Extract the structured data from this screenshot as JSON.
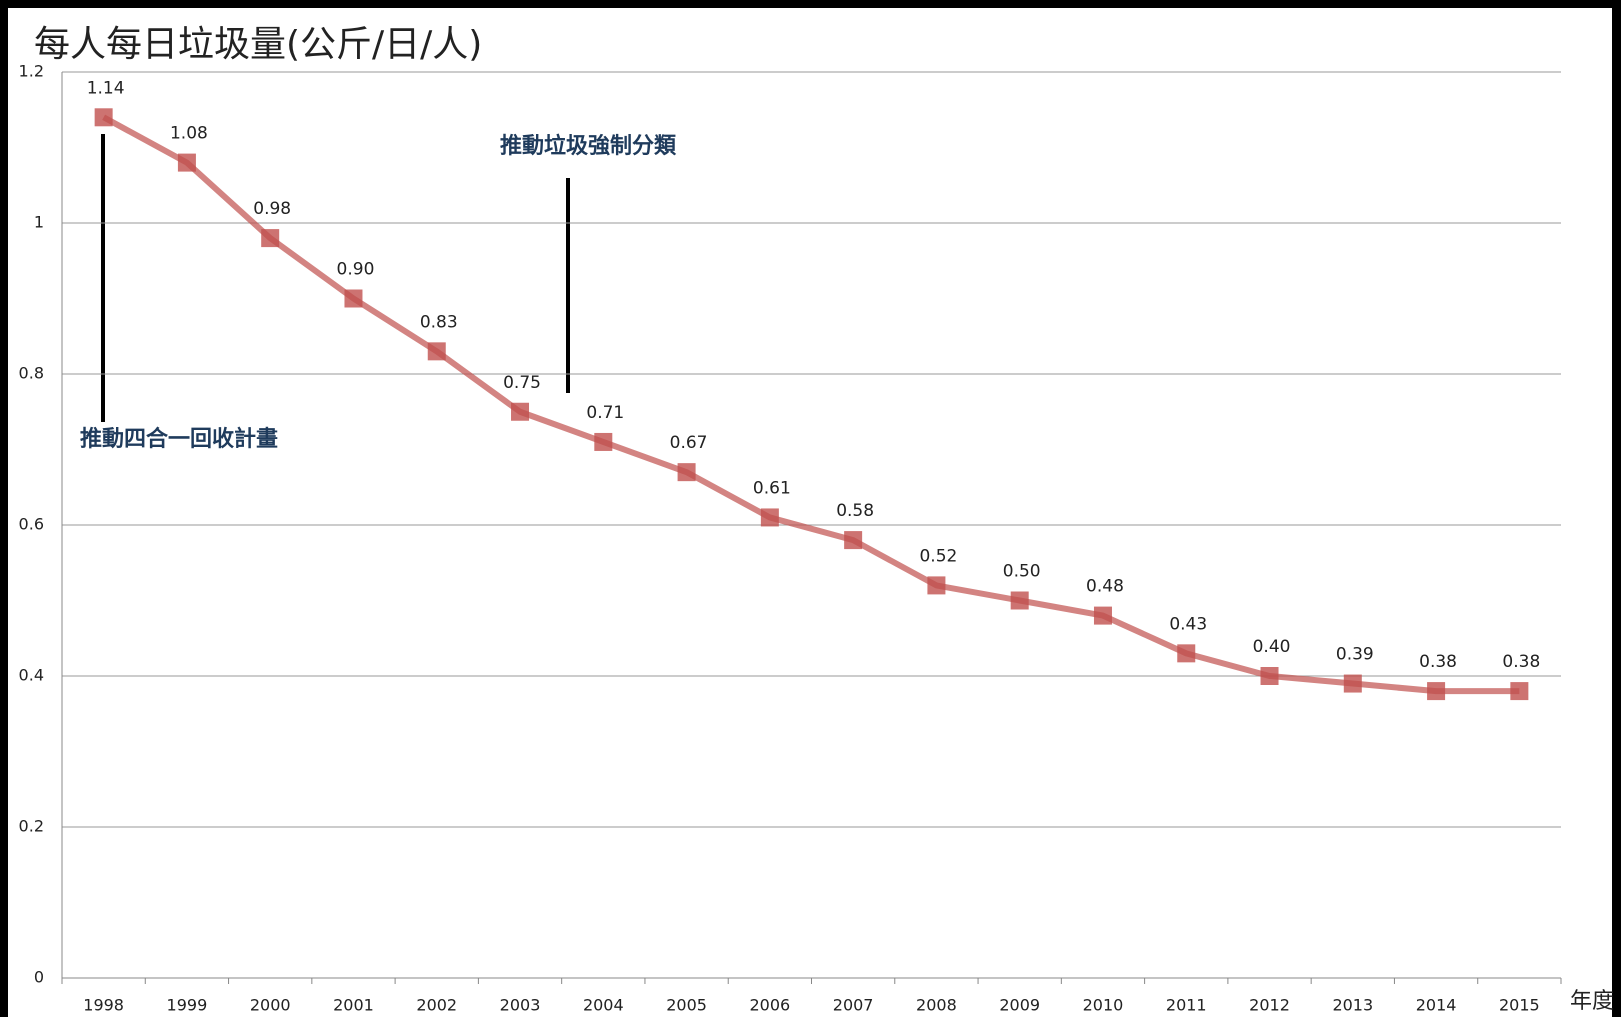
{
  "chart_data": {
    "type": "line",
    "title": "每人每日垃圾量(公斤/日/人)",
    "x_label": "年度",
    "categories": [
      "1998",
      "1999",
      "2000",
      "2001",
      "2002",
      "2003",
      "2004",
      "2005",
      "2006",
      "2007",
      "2008",
      "2009",
      "2010",
      "2011",
      "2012",
      "2013",
      "2014",
      "2015"
    ],
    "values": [
      1.14,
      1.08,
      0.98,
      0.9,
      0.83,
      0.75,
      0.71,
      0.67,
      0.61,
      0.58,
      0.52,
      0.5,
      0.48,
      0.43,
      0.4,
      0.39,
      0.38,
      0.38
    ],
    "value_labels": [
      "1.14",
      "1.08",
      "0.98",
      "0.90",
      "0.83",
      "0.75",
      "0.71",
      "0.67",
      "0.61",
      "0.58",
      "0.52",
      "0.50",
      "0.48",
      "0.43",
      "0.40",
      "0.39",
      "0.38",
      "0.38"
    ],
    "color": "#c0504d",
    "ylim": [
      0,
      1.2
    ],
    "yticks": [
      0,
      0.2,
      0.4,
      0.6,
      0.8,
      1,
      1.2
    ],
    "grid": true,
    "annotations": [
      "推動四合一回收計畫",
      "推動垃圾強制分類"
    ]
  }
}
